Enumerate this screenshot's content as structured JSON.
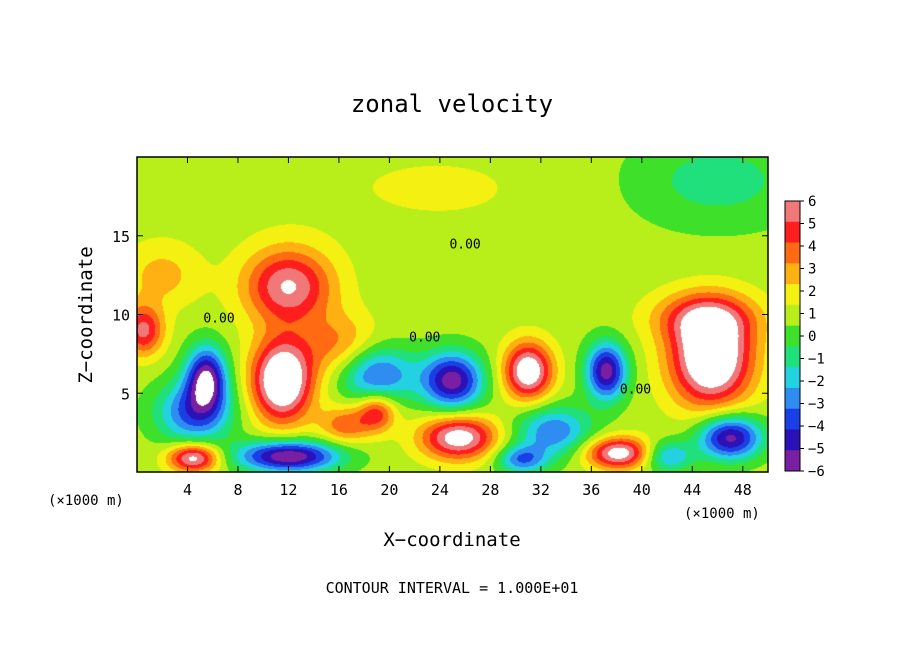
{
  "chart_data": {
    "type": "heatmap",
    "title": "zonal velocity",
    "xlabel": "X−coordinate",
    "ylabel": "Z−coordinate",
    "x_unit_left": "(×1000 m)",
    "x_unit_right": "(×1000 m)",
    "footer": "CONTOUR INTERVAL = 1.000E+01",
    "xlim": [
      0,
      50
    ],
    "ylim": [
      0,
      20
    ],
    "x_ticks": [
      4,
      8,
      12,
      16,
      20,
      24,
      28,
      32,
      36,
      40,
      44,
      48
    ],
    "y_ticks": [
      5,
      10,
      15
    ],
    "colorbar": {
      "ticks": [
        6,
        5,
        4,
        3,
        2,
        1,
        0,
        -1,
        -2,
        -3,
        -4,
        -5,
        -6
      ],
      "vmin": -6,
      "vmax": 6,
      "colors": [
        "#7a1fa2",
        "#2a12b8",
        "#1a3fe6",
        "#2f8cf0",
        "#22d2e0",
        "#1fe07a",
        "#3fe02a",
        "#b8ef1a",
        "#f3f012",
        "#ffb012",
        "#ff6a12",
        "#ff1e1e",
        "#f07878"
      ]
    },
    "contour_labels": [
      {
        "text": "0.00",
        "x": 6.5,
        "y": 9.5
      },
      {
        "text": "0.00",
        "x": 26.0,
        "y": 14.2
      },
      {
        "text": "0.00",
        "x": 22.8,
        "y": 8.3
      },
      {
        "text": "0.00",
        "x": 39.5,
        "y": 5.0
      }
    ],
    "features": [
      {
        "x": 0.0,
        "y": 19.0,
        "v": 0.4,
        "sx": 12,
        "sz": 3
      },
      {
        "x": 24.0,
        "y": 18.0,
        "v": 0.6,
        "sx": 10,
        "sz": 3
      },
      {
        "x": 46.0,
        "y": 18.5,
        "v": -1.8,
        "sx": 7,
        "sz": 3
      },
      {
        "x": 2.0,
        "y": 12.5,
        "v": 1.8,
        "sx": 3,
        "sz": 2
      },
      {
        "x": 12.0,
        "y": 11.8,
        "v": 5.2,
        "sx": 3.5,
        "sz": 2.4
      },
      {
        "x": 16.0,
        "y": 8.0,
        "v": 2.5,
        "sx": 3,
        "sz": 2
      },
      {
        "x": 0.5,
        "y": 9.0,
        "v": 4.5,
        "sx": 1.6,
        "sz": 1.6
      },
      {
        "x": 5.5,
        "y": 6.0,
        "v": -6.5,
        "sx": 1.6,
        "sz": 2.0
      },
      {
        "x": 4.5,
        "y": 3.8,
        "v": -4.5,
        "sx": 3,
        "sz": 2.0
      },
      {
        "x": 11.5,
        "y": 5.8,
        "v": 7.5,
        "sx": 2.4,
        "sz": 2.6
      },
      {
        "x": 19.0,
        "y": 6.2,
        "v": -4.5,
        "sx": 3,
        "sz": 1.8
      },
      {
        "x": 19.0,
        "y": 3.8,
        "v": 4.0,
        "sx": 1.5,
        "sz": 1.2
      },
      {
        "x": 25.0,
        "y": 5.8,
        "v": -6.5,
        "sx": 2.4,
        "sz": 1.8
      },
      {
        "x": 25.5,
        "y": 2.2,
        "v": 6.0,
        "sx": 3.0,
        "sz": 1.4
      },
      {
        "x": 31.0,
        "y": 6.4,
        "v": 6.5,
        "sx": 1.9,
        "sz": 1.8
      },
      {
        "x": 33.0,
        "y": 2.6,
        "v": -4.0,
        "sx": 3,
        "sz": 1.6
      },
      {
        "x": 37.2,
        "y": 6.4,
        "v": -6.5,
        "sx": 1.6,
        "sz": 1.8
      },
      {
        "x": 38.2,
        "y": 1.2,
        "v": 6.0,
        "sx": 2.6,
        "sz": 1.0
      },
      {
        "x": 45.5,
        "y": 7.2,
        "v": 7.5,
        "sx": 3.2,
        "sz": 3.0
      },
      {
        "x": 45.0,
        "y": 9.8,
        "v": 3.5,
        "sx": 4,
        "sz": 1.6
      },
      {
        "x": 47.0,
        "y": 2.2,
        "v": -6.5,
        "sx": 2.5,
        "sz": 1.4
      },
      {
        "x": 4.5,
        "y": 0.9,
        "v": 6.0,
        "sx": 2.0,
        "sz": 0.9
      },
      {
        "x": 12.0,
        "y": 1.0,
        "v": -7.0,
        "sx": 4,
        "sz": 1.0
      },
      {
        "x": 16.5,
        "y": 3.0,
        "v": 3.0,
        "sx": 2,
        "sz": 1.2
      },
      {
        "x": 30.5,
        "y": 0.8,
        "v": -4.0,
        "sx": 2,
        "sz": 0.9
      },
      {
        "x": 42.0,
        "y": 1.0,
        "v": -3.5,
        "sx": 2,
        "sz": 1.0
      }
    ]
  }
}
